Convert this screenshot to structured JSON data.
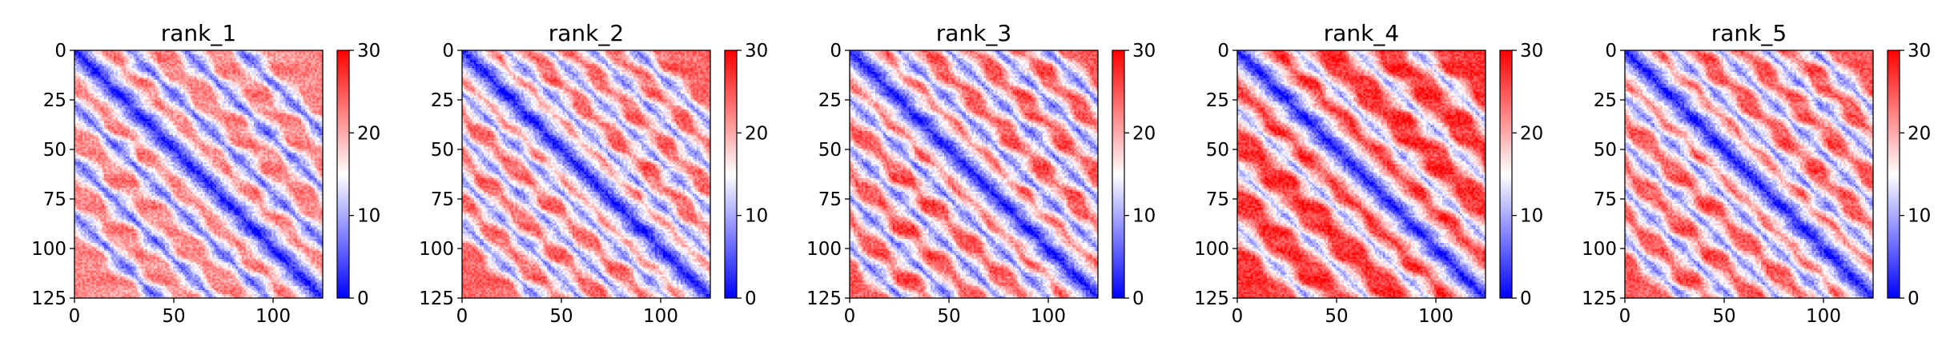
{
  "chart_data": [
    {
      "type": "heatmap",
      "title": "rank_1",
      "x": {
        "min": 0,
        "max": 125,
        "ticks": [
          0,
          50,
          100
        ],
        "tick_labels": [
          "0",
          "50",
          "100"
        ]
      },
      "y": {
        "min": 0,
        "max": 125,
        "inverted": true,
        "ticks": [
          0,
          25,
          50,
          75,
          100,
          125
        ],
        "tick_labels": [
          "0",
          "25",
          "50",
          "75",
          "100",
          "125"
        ]
      },
      "colorbar": {
        "min": 0,
        "max": 30,
        "ticks": [
          0,
          10,
          20,
          30
        ],
        "tick_labels": [
          "0",
          "10",
          "20",
          "30"
        ],
        "colormap": "bwr",
        "colors": [
          "#0000ff",
          "#ffffff",
          "#ff0000"
        ]
      },
      "pattern": {
        "diagonal_offsets": [
          0,
          28,
          56,
          84
        ],
        "band_value": 6,
        "background_value": 22
      },
      "grid": false
    },
    {
      "type": "heatmap",
      "title": "rank_2",
      "x": {
        "min": 0,
        "max": 125,
        "ticks": [
          0,
          50,
          100
        ],
        "tick_labels": [
          "0",
          "50",
          "100"
        ]
      },
      "y": {
        "min": 0,
        "max": 125,
        "inverted": true,
        "ticks": [
          0,
          25,
          50,
          75,
          100,
          125
        ],
        "tick_labels": [
          "0",
          "25",
          "50",
          "75",
          "100",
          "125"
        ]
      },
      "colorbar": {
        "min": 0,
        "max": 30,
        "ticks": [
          0,
          10,
          20,
          30
        ],
        "tick_labels": [
          "0",
          "10",
          "20",
          "30"
        ],
        "colormap": "bwr",
        "colors": [
          "#0000ff",
          "#ffffff",
          "#ff0000"
        ]
      },
      "pattern": {
        "diagonal_offsets": [
          0,
          22,
          44,
          66,
          88
        ],
        "band_value": 8,
        "background_value": 24
      },
      "grid": false
    },
    {
      "type": "heatmap",
      "title": "rank_3",
      "x": {
        "min": 0,
        "max": 125,
        "ticks": [
          0,
          50,
          100
        ],
        "tick_labels": [
          "0",
          "50",
          "100"
        ]
      },
      "y": {
        "min": 0,
        "max": 125,
        "inverted": true,
        "ticks": [
          0,
          25,
          50,
          75,
          100,
          125
        ],
        "tick_labels": [
          "0",
          "25",
          "50",
          "75",
          "100",
          "125"
        ]
      },
      "colorbar": {
        "min": 0,
        "max": 30,
        "ticks": [
          0,
          10,
          20,
          30
        ],
        "tick_labels": [
          "0",
          "10",
          "20",
          "30"
        ],
        "colormap": "bwr",
        "colors": [
          "#0000ff",
          "#ffffff",
          "#ff0000"
        ]
      },
      "pattern": {
        "diagonal_offsets": [
          0,
          25,
          50,
          75,
          100
        ],
        "band_value": 7,
        "background_value": 25
      },
      "grid": false
    },
    {
      "type": "heatmap",
      "title": "rank_4",
      "x": {
        "min": 0,
        "max": 125,
        "ticks": [
          0,
          50,
          100
        ],
        "tick_labels": [
          "0",
          "50",
          "100"
        ]
      },
      "y": {
        "min": 0,
        "max": 125,
        "inverted": true,
        "ticks": [
          0,
          25,
          50,
          75,
          100,
          125
        ],
        "tick_labels": [
          "0",
          "25",
          "50",
          "75",
          "100",
          "125"
        ]
      },
      "colorbar": {
        "min": 0,
        "max": 30,
        "ticks": [
          0,
          10,
          20,
          30
        ],
        "tick_labels": [
          "0",
          "10",
          "20",
          "30"
        ],
        "colormap": "bwr",
        "colors": [
          "#0000ff",
          "#ffffff",
          "#ff0000"
        ]
      },
      "pattern": {
        "diagonal_offsets": [
          0,
          30,
          60,
          90
        ],
        "band_value": 10,
        "background_value": 27
      },
      "grid": false
    },
    {
      "type": "heatmap",
      "title": "rank_5",
      "x": {
        "min": 0,
        "max": 125,
        "ticks": [
          0,
          50,
          100
        ],
        "tick_labels": [
          "0",
          "50",
          "100"
        ]
      },
      "y": {
        "min": 0,
        "max": 125,
        "inverted": true,
        "ticks": [
          0,
          25,
          50,
          75,
          100,
          125
        ],
        "tick_labels": [
          "0",
          "25",
          "50",
          "75",
          "100",
          "125"
        ]
      },
      "colorbar": {
        "min": 0,
        "max": 30,
        "ticks": [
          0,
          10,
          20,
          30
        ],
        "tick_labels": [
          "0",
          "10",
          "20",
          "30"
        ],
        "colormap": "bwr",
        "colors": [
          "#0000ff",
          "#ffffff",
          "#ff0000"
        ]
      },
      "pattern": {
        "diagonal_offsets": [
          0,
          24,
          48,
          72,
          96
        ],
        "band_value": 8,
        "background_value": 25
      },
      "grid": false
    }
  ]
}
